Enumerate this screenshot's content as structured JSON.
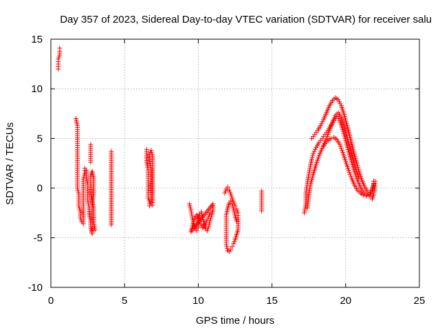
{
  "chart_data": {
    "type": "scatter",
    "title": "Day 357 of 2023, Sidereal Day-to-day VTEC variation (SDTVAR) for receiver salu",
    "xlabel": "GPS time / hours",
    "ylabel": "SDTVAR / TECUs",
    "xlim": [
      0,
      25
    ],
    "ylim": [
      -10,
      15
    ],
    "xticks": [
      0,
      5,
      10,
      15,
      20,
      25
    ],
    "yticks": [
      -10,
      -5,
      0,
      5,
      10,
      15
    ],
    "grid": true,
    "marker": "+",
    "color": "#ff0000",
    "series": [
      {
        "name": "SDTVAR",
        "segments": [
          [
            [
              0.5,
              12.0
            ],
            [
              0.5,
              12.5
            ],
            [
              0.5,
              13.0
            ],
            [
              0.6,
              13.4
            ],
            [
              0.6,
              13.8
            ],
            [
              0.6,
              14.1
            ]
          ],
          [
            [
              1.7,
              7.0
            ],
            [
              1.8,
              6.3
            ],
            [
              1.8,
              5.5
            ],
            [
              1.8,
              4.7
            ],
            [
              1.8,
              3.9
            ],
            [
              1.8,
              2.6
            ],
            [
              1.8,
              1.6
            ],
            [
              1.8,
              0.8
            ],
            [
              1.8,
              0.0
            ],
            [
              1.9,
              -0.6
            ],
            [
              1.9,
              -1.2
            ],
            [
              1.9,
              -1.8
            ],
            [
              2.0,
              -2.4
            ],
            [
              2.0,
              -3.0
            ],
            [
              2.1,
              -3.4
            ],
            [
              2.2,
              -3.6
            ],
            [
              2.2,
              -3.0
            ],
            [
              2.2,
              -2.3
            ],
            [
              2.2,
              -1.5
            ],
            [
              2.2,
              -0.7
            ],
            [
              2.2,
              0.1
            ],
            [
              2.2,
              0.9
            ],
            [
              2.3,
              1.5
            ],
            [
              2.3,
              2.0
            ],
            [
              2.4,
              1.8
            ],
            [
              2.4,
              1.1
            ],
            [
              2.5,
              0.4
            ],
            [
              2.5,
              -0.4
            ],
            [
              2.5,
              -1.2
            ],
            [
              2.6,
              -2.0
            ],
            [
              2.6,
              -2.7
            ],
            [
              2.7,
              -3.3
            ],
            [
              2.7,
              -3.9
            ],
            [
              2.8,
              -4.6
            ],
            [
              2.8,
              -4.3
            ],
            [
              2.8,
              -3.7
            ],
            [
              2.8,
              -3.0
            ],
            [
              2.8,
              -2.2
            ],
            [
              2.8,
              -1.4
            ],
            [
              2.9,
              -0.6
            ],
            [
              2.9,
              0.2
            ],
            [
              2.9,
              1.0
            ],
            [
              2.8,
              1.7
            ],
            [
              2.7,
              1.2
            ],
            [
              2.7,
              0.4
            ],
            [
              2.7,
              -0.5
            ],
            [
              2.8,
              -1.3
            ],
            [
              2.9,
              -2.0
            ],
            [
              2.9,
              -2.8
            ],
            [
              2.9,
              -3.5
            ],
            [
              3.0,
              -4.2
            ]
          ],
          [
            [
              2.7,
              4.4
            ],
            [
              2.7,
              3.8
            ],
            [
              2.7,
              3.2
            ],
            [
              2.7,
              2.6
            ]
          ],
          [
            [
              4.1,
              3.7
            ],
            [
              4.1,
              2.2
            ],
            [
              4.1,
              0.4
            ],
            [
              4.1,
              -3.7
            ]
          ],
          [
            [
              6.5,
              3.9
            ],
            [
              6.5,
              3.3
            ],
            [
              6.5,
              2.6
            ],
            [
              6.6,
              1.9
            ],
            [
              6.6,
              1.2
            ],
            [
              6.6,
              0.4
            ],
            [
              6.6,
              -0.4
            ],
            [
              6.6,
              -1.0
            ],
            [
              6.7,
              -1.4
            ],
            [
              6.7,
              -1.8
            ],
            [
              6.8,
              -1.5
            ],
            [
              6.8,
              -0.8
            ],
            [
              6.8,
              0.1
            ],
            [
              6.8,
              1.0
            ],
            [
              6.8,
              1.9
            ],
            [
              6.7,
              2.7
            ],
            [
              6.7,
              3.4
            ],
            [
              6.8,
              3.8
            ],
            [
              6.9,
              3.2
            ],
            [
              6.9,
              2.3
            ],
            [
              6.9,
              1.4
            ],
            [
              6.9,
              0.5
            ],
            [
              6.9,
              -0.4
            ],
            [
              6.9,
              -1.2
            ],
            [
              6.9,
              -1.7
            ]
          ],
          [
            [
              9.4,
              -1.6
            ],
            [
              9.5,
              -2.2
            ],
            [
              9.6,
              -3.0
            ],
            [
              9.7,
              -3.6
            ],
            [
              9.8,
              -4.1
            ],
            [
              9.9,
              -4.3
            ],
            [
              10.0,
              -4.0
            ],
            [
              10.0,
              -3.3
            ],
            [
              10.1,
              -2.6
            ],
            [
              10.2,
              -2.4
            ],
            [
              10.3,
              -3.0
            ],
            [
              10.4,
              -3.6
            ],
            [
              10.5,
              -4.1
            ],
            [
              10.6,
              -4.3
            ],
            [
              10.7,
              -3.9
            ],
            [
              10.8,
              -3.3
            ],
            [
              10.9,
              -2.7
            ],
            [
              11.0,
              -2.2
            ],
            [
              11.0,
              -1.6
            ],
            [
              9.5,
              -4.4
            ],
            [
              9.6,
              -3.9
            ],
            [
              9.7,
              -3.2
            ],
            [
              9.9,
              -2.7
            ],
            [
              10.1,
              -3.4
            ],
            [
              10.3,
              -4.0
            ],
            [
              10.5,
              -3.5
            ],
            [
              10.7,
              -2.9
            ],
            [
              10.8,
              -2.5
            ]
          ],
          [
            [
              11.8,
              -0.5
            ],
            [
              11.9,
              -0.1
            ],
            [
              12.0,
              0.1
            ],
            [
              12.1,
              -0.2
            ],
            [
              12.2,
              -0.6
            ],
            [
              12.3,
              -1.0
            ],
            [
              12.4,
              -1.4
            ],
            [
              12.5,
              -1.8
            ],
            [
              12.6,
              -2.1
            ],
            [
              12.7,
              -2.5
            ],
            [
              12.7,
              -3.0
            ],
            [
              12.7,
              -3.6
            ],
            [
              12.7,
              -4.2
            ],
            [
              12.6,
              -4.7
            ],
            [
              12.5,
              -5.2
            ],
            [
              12.4,
              -5.6
            ],
            [
              12.3,
              -5.9
            ],
            [
              12.2,
              -6.2
            ],
            [
              12.1,
              -6.4
            ],
            [
              12.0,
              -6.3
            ],
            [
              11.9,
              -5.7
            ],
            [
              11.9,
              -4.7
            ],
            [
              11.9,
              -3.7
            ],
            [
              11.9,
              -2.7
            ],
            [
              12.0,
              -2.0
            ],
            [
              12.1,
              -1.5
            ],
            [
              12.2,
              -1.3
            ],
            [
              12.3,
              -1.6
            ],
            [
              12.4,
              -2.2
            ],
            [
              12.5,
              -2.8
            ],
            [
              12.6,
              -3.3
            ]
          ],
          [
            [
              14.3,
              -0.3
            ],
            [
              14.3,
              -1.5
            ],
            [
              14.3,
              -1.9
            ],
            [
              14.3,
              -2.3
            ]
          ],
          [
            [
              17.2,
              -2.5
            ],
            [
              17.3,
              -1.5
            ],
            [
              17.3,
              -0.5
            ],
            [
              17.4,
              0.5
            ],
            [
              17.5,
              1.4
            ],
            [
              17.6,
              2.2
            ],
            [
              17.7,
              2.9
            ],
            [
              17.8,
              3.5
            ],
            [
              18.0,
              4.1
            ],
            [
              18.2,
              4.6
            ],
            [
              18.4,
              5.0
            ],
            [
              18.6,
              5.4
            ],
            [
              18.8,
              5.8
            ],
            [
              19.0,
              6.3
            ],
            [
              19.2,
              6.8
            ],
            [
              19.4,
              7.2
            ],
            [
              19.6,
              6.8
            ],
            [
              19.8,
              5.9
            ],
            [
              20.0,
              4.8
            ],
            [
              20.2,
              3.7
            ],
            [
              20.4,
              2.7
            ],
            [
              20.6,
              1.7
            ],
            [
              20.8,
              0.8
            ],
            [
              21.0,
              0.1
            ],
            [
              21.2,
              -0.4
            ],
            [
              21.4,
              -0.7
            ],
            [
              21.6,
              -0.8
            ],
            [
              21.8,
              -0.4
            ],
            [
              21.9,
              0.3
            ],
            [
              21.9,
              0.7
            ]
          ],
          [
            [
              17.4,
              -2.0
            ],
            [
              17.5,
              -0.8
            ],
            [
              17.6,
              0.3
            ],
            [
              17.8,
              1.4
            ],
            [
              18.0,
              2.4
            ],
            [
              18.2,
              3.3
            ],
            [
              18.4,
              4.0
            ],
            [
              18.6,
              4.5
            ],
            [
              18.8,
              4.8
            ],
            [
              19.0,
              5.0
            ],
            [
              19.2,
              5.1
            ],
            [
              19.4,
              4.9
            ],
            [
              19.6,
              4.4
            ],
            [
              19.8,
              3.6
            ],
            [
              20.0,
              2.7
            ],
            [
              20.2,
              1.8
            ],
            [
              20.4,
              1.0
            ],
            [
              20.6,
              0.3
            ],
            [
              20.8,
              -0.2
            ],
            [
              21.0,
              -0.5
            ],
            [
              21.2,
              -0.7
            ],
            [
              21.4,
              -0.8
            ],
            [
              21.6,
              -0.6
            ],
            [
              21.8,
              -0.1
            ],
            [
              21.9,
              0.4
            ]
          ],
          [
            [
              17.7,
              5.0
            ],
            [
              17.9,
              5.4
            ],
            [
              18.1,
              5.8
            ],
            [
              18.3,
              6.3
            ],
            [
              18.5,
              6.9
            ],
            [
              18.7,
              7.6
            ],
            [
              18.9,
              8.3
            ],
            [
              19.1,
              8.8
            ],
            [
              19.3,
              9.1
            ],
            [
              19.5,
              8.9
            ],
            [
              19.7,
              8.3
            ],
            [
              19.9,
              7.4
            ],
            [
              20.1,
              6.3
            ],
            [
              20.3,
              5.1
            ],
            [
              20.5,
              3.9
            ],
            [
              20.7,
              2.8
            ],
            [
              20.9,
              1.7
            ],
            [
              21.1,
              0.8
            ],
            [
              21.3,
              0.1
            ],
            [
              21.5,
              -0.4
            ],
            [
              21.7,
              -0.8
            ],
            [
              21.8,
              -1.1
            ],
            [
              21.9,
              -0.6
            ],
            [
              22.0,
              0.2
            ],
            [
              22.0,
              0.7
            ]
          ],
          [
            [
              18.5,
              4.3
            ],
            [
              18.7,
              5.0
            ],
            [
              18.9,
              5.8
            ],
            [
              19.1,
              6.6
            ],
            [
              19.3,
              7.3
            ],
            [
              19.5,
              7.6
            ],
            [
              19.7,
              7.1
            ],
            [
              19.9,
              6.2
            ],
            [
              20.1,
              5.1
            ],
            [
              20.3,
              4.0
            ],
            [
              20.5,
              2.9
            ],
            [
              20.7,
              1.9
            ],
            [
              20.9,
              1.0
            ]
          ]
        ]
      }
    ]
  }
}
